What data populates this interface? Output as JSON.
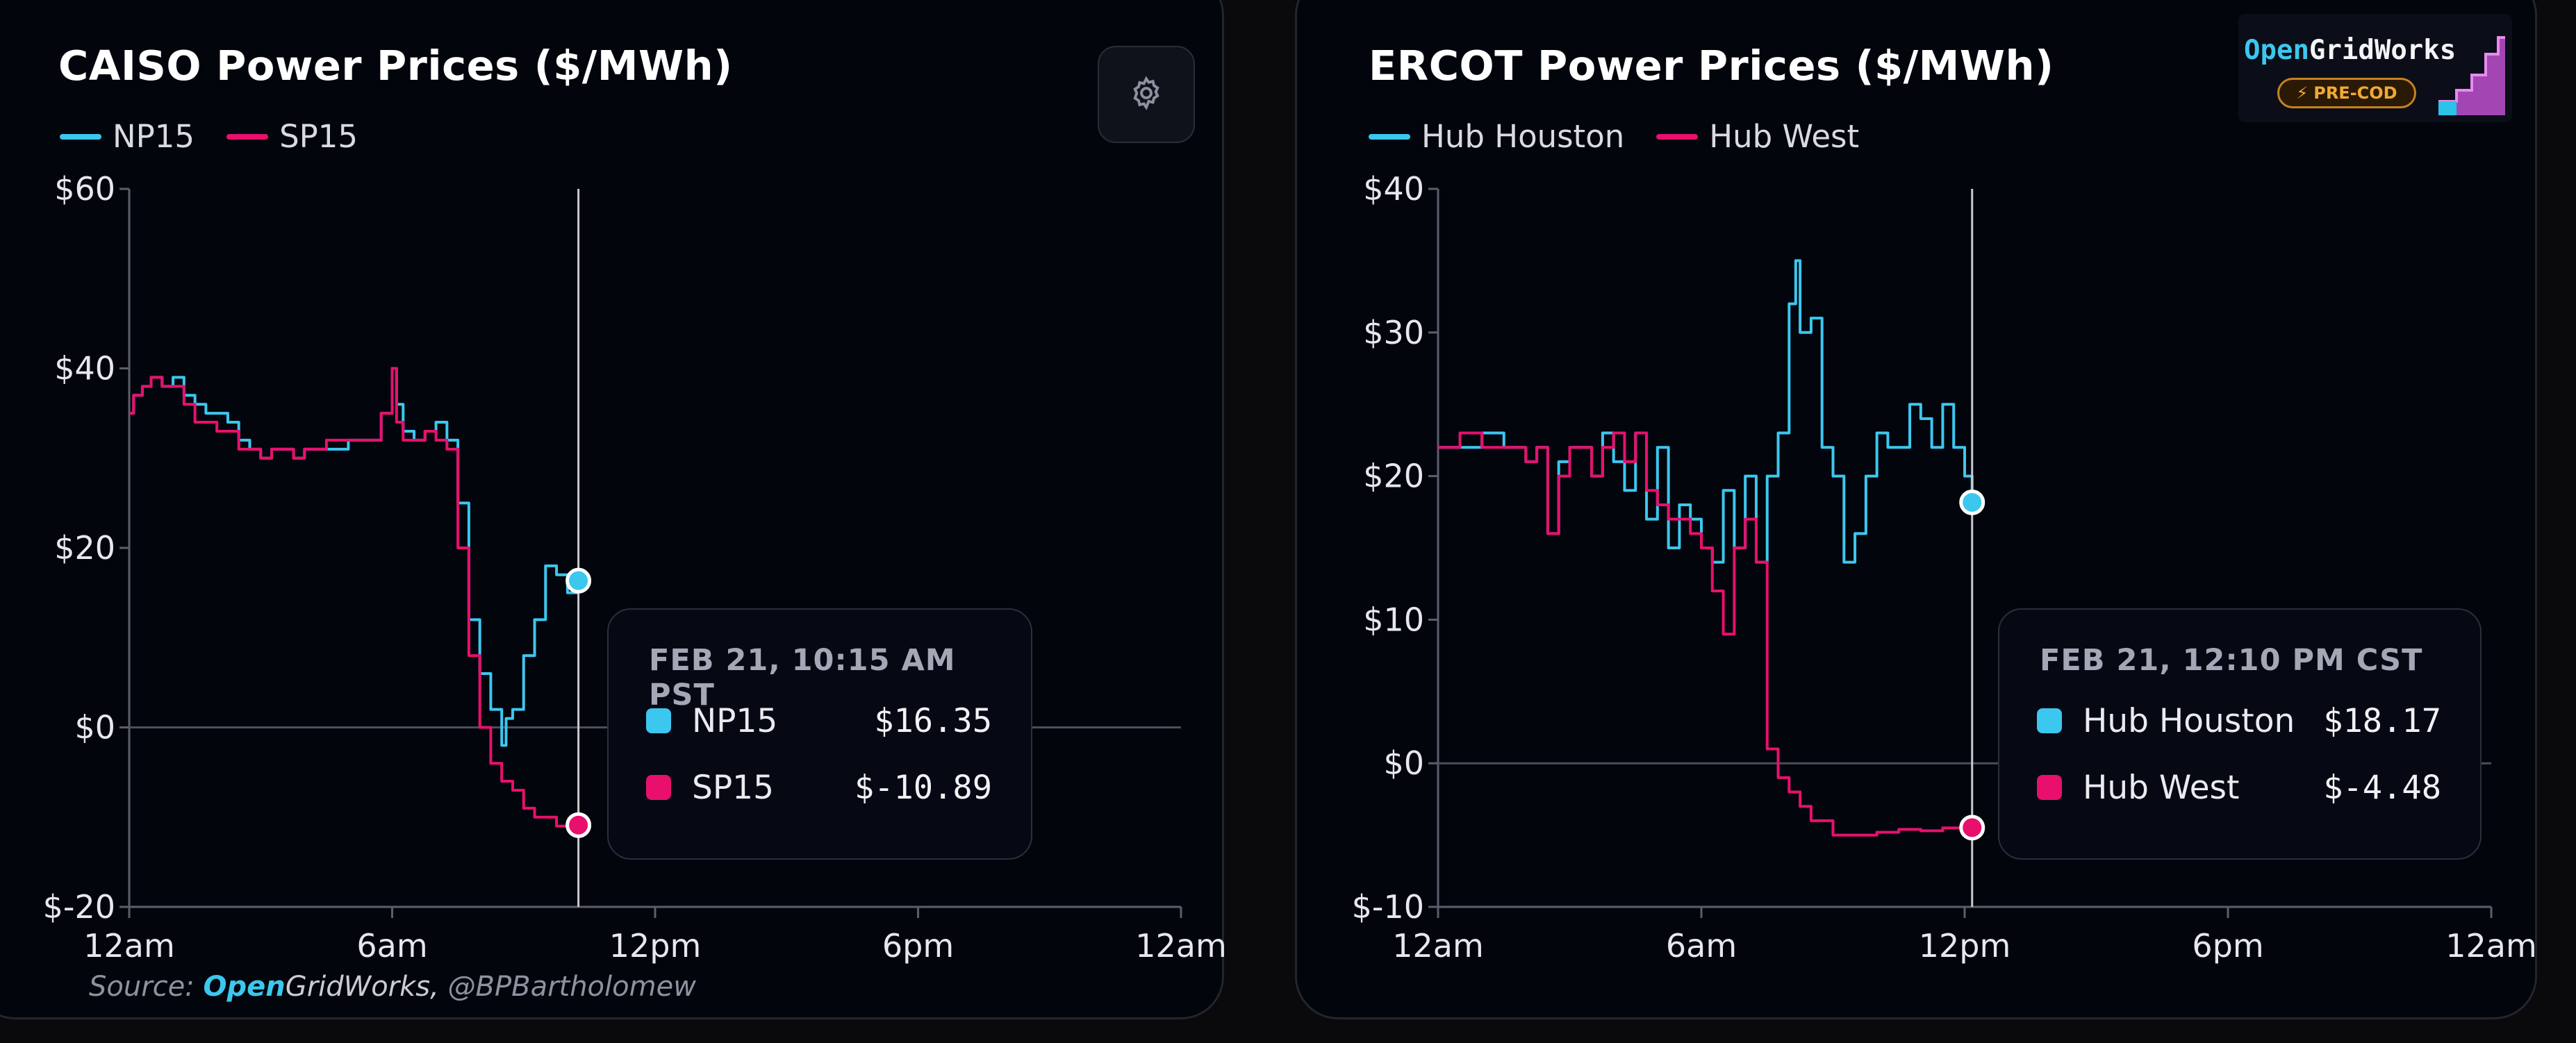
{
  "source": {
    "prefix": "Source: ",
    "brand_open": "Open",
    "brand_rest": "GridWorks,",
    "handle": " @BPBartholomew"
  },
  "logo": {
    "open": "Open",
    "rest": "GridWorks",
    "badge": "PRE-COD"
  },
  "colors": {
    "series1": "#3cc7ee",
    "series2": "#e8106c",
    "background": "#03050d"
  },
  "charts": [
    {
      "title": "CAISO Power Prices ($/MWh)",
      "tooltip": {
        "time": "FEB 21, 10:15 AM PST",
        "rows": [
          {
            "name": "NP15",
            "value": "$16.35"
          },
          {
            "name": "SP15",
            "value": "$-10.89"
          }
        ]
      },
      "has_settings_button": true,
      "settings_icon": "gear-icon"
    },
    {
      "title": "ERCOT Power Prices ($/MWh)",
      "tooltip": {
        "time": "FEB 21, 12:10 PM CST",
        "rows": [
          {
            "name": "Hub Houston",
            "value": "$18.17"
          },
          {
            "name": "Hub West",
            "value": "$-4.48"
          }
        ]
      },
      "has_settings_button": false
    }
  ],
  "chart_data": [
    {
      "type": "line",
      "title": "CAISO Power Prices ($/MWh)",
      "x_unit": "hour of day",
      "xlim": [
        0,
        24
      ],
      "ylim": [
        -20,
        60
      ],
      "yticks": [
        -20,
        0,
        20,
        40,
        60
      ],
      "ytick_labels": [
        "$-20",
        "$0",
        "$20",
        "$40",
        "$60"
      ],
      "xticks": [
        0,
        6,
        12,
        18,
        24
      ],
      "xtick_labels": [
        "12am",
        "6am",
        "12pm",
        "6pm",
        "12am"
      ],
      "crosshair_x": 10.25,
      "grid": false,
      "legend": "top-left",
      "series": [
        {
          "name": "NP15",
          "color": "#3cc7ee",
          "x": [
            0,
            0.1,
            0.3,
            0.5,
            0.75,
            1,
            1.25,
            1.5,
            1.75,
            2,
            2.25,
            2.5,
            2.75,
            3,
            3.25,
            3.5,
            3.75,
            4,
            4.5,
            5,
            5.5,
            5.75,
            6,
            6.1,
            6.25,
            6.5,
            6.75,
            7,
            7.25,
            7.5,
            7.75,
            8,
            8.25,
            8.5,
            8.6,
            8.75,
            9,
            9.25,
            9.5,
            9.75,
            10,
            10.25
          ],
          "y": [
            35,
            37,
            38,
            39,
            38,
            39,
            37,
            36,
            35,
            35,
            34,
            32,
            31,
            30,
            31,
            31,
            30,
            31,
            31,
            32,
            32,
            35,
            40,
            36,
            33,
            32,
            33,
            34,
            32,
            25,
            12,
            6,
            2,
            -2,
            1,
            2,
            8,
            12,
            18,
            17,
            15,
            16.35
          ]
        },
        {
          "name": "SP15",
          "color": "#e8106c",
          "x": [
            0,
            0.1,
            0.3,
            0.5,
            0.75,
            1,
            1.25,
            1.5,
            1.75,
            2,
            2.25,
            2.5,
            2.75,
            3,
            3.25,
            3.5,
            3.75,
            4,
            4.5,
            5,
            5.5,
            5.75,
            6,
            6.1,
            6.25,
            6.5,
            6.75,
            7,
            7.25,
            7.5,
            7.75,
            8,
            8.25,
            8.5,
            8.75,
            9,
            9.25,
            9.5,
            9.75,
            10,
            10.25
          ],
          "y": [
            35,
            37,
            38,
            39,
            38,
            38,
            36,
            34,
            34,
            33,
            33,
            31,
            31,
            30,
            31,
            31,
            30,
            31,
            32,
            32,
            32,
            35,
            40,
            34,
            32,
            32,
            33,
            32,
            31,
            20,
            8,
            0,
            -4,
            -6,
            -7,
            -9,
            -10,
            -10,
            -11,
            -11,
            -10.89
          ]
        }
      ]
    },
    {
      "type": "line",
      "title": "ERCOT Power Prices ($/MWh)",
      "x_unit": "hour of day",
      "xlim": [
        0,
        24
      ],
      "ylim": [
        -10,
        40
      ],
      "yticks": [
        -10,
        0,
        10,
        20,
        30,
        40
      ],
      "ytick_labels": [
        "$-10",
        "$0",
        "$10",
        "$20",
        "$30",
        "$40"
      ],
      "xticks": [
        0,
        6,
        12,
        18,
        24
      ],
      "xtick_labels": [
        "12am",
        "6am",
        "12pm",
        "6pm",
        "12am"
      ],
      "crosshair_x": 12.17,
      "grid": false,
      "legend": "top-left",
      "series": [
        {
          "name": "Hub Houston",
          "color": "#3cc7ee",
          "x": [
            0,
            0.5,
            1,
            1.5,
            2,
            2.25,
            2.5,
            2.75,
            3,
            3.25,
            3.5,
            3.75,
            4,
            4.25,
            4.5,
            4.75,
            5,
            5.25,
            5.5,
            5.75,
            6,
            6.25,
            6.5,
            6.75,
            7,
            7.25,
            7.5,
            7.75,
            8,
            8.15,
            8.25,
            8.5,
            8.75,
            9,
            9.25,
            9.5,
            9.75,
            10,
            10.25,
            10.5,
            10.75,
            11,
            11.25,
            11.5,
            11.75,
            12,
            12.17
          ],
          "y": [
            22,
            22,
            23,
            22,
            21,
            22,
            16,
            21,
            22,
            22,
            20,
            23,
            21,
            19,
            23,
            17,
            22,
            15,
            18,
            17,
            15,
            14,
            19,
            15,
            20,
            14,
            20,
            23,
            32,
            35,
            30,
            31,
            22,
            20,
            14,
            16,
            20,
            23,
            22,
            22,
            25,
            24,
            22,
            25,
            22,
            20,
            18.17
          ]
        },
        {
          "name": "Hub West",
          "color": "#e8106c",
          "x": [
            0,
            0.5,
            1,
            1.5,
            2,
            2.25,
            2.5,
            2.75,
            3,
            3.25,
            3.5,
            3.75,
            4,
            4.25,
            4.5,
            4.75,
            5,
            5.25,
            5.5,
            5.75,
            6,
            6.25,
            6.5,
            6.75,
            7,
            7.25,
            7.5,
            7.75,
            8,
            8.25,
            8.5,
            8.75,
            9,
            9.25,
            9.5,
            9.75,
            10,
            10.5,
            11,
            11.5,
            12,
            12.17
          ],
          "y": [
            22,
            23,
            22,
            22,
            21,
            22,
            16,
            20,
            22,
            22,
            20,
            22,
            23,
            21,
            23,
            19,
            18,
            17,
            17,
            16,
            15,
            12,
            9,
            15,
            17,
            14,
            1,
            -1,
            -2,
            -3,
            -4,
            -4,
            -5,
            -5,
            -5,
            -5,
            -4.8,
            -4.6,
            -4.7,
            -4.5,
            -4.5,
            -4.48
          ]
        }
      ]
    }
  ]
}
